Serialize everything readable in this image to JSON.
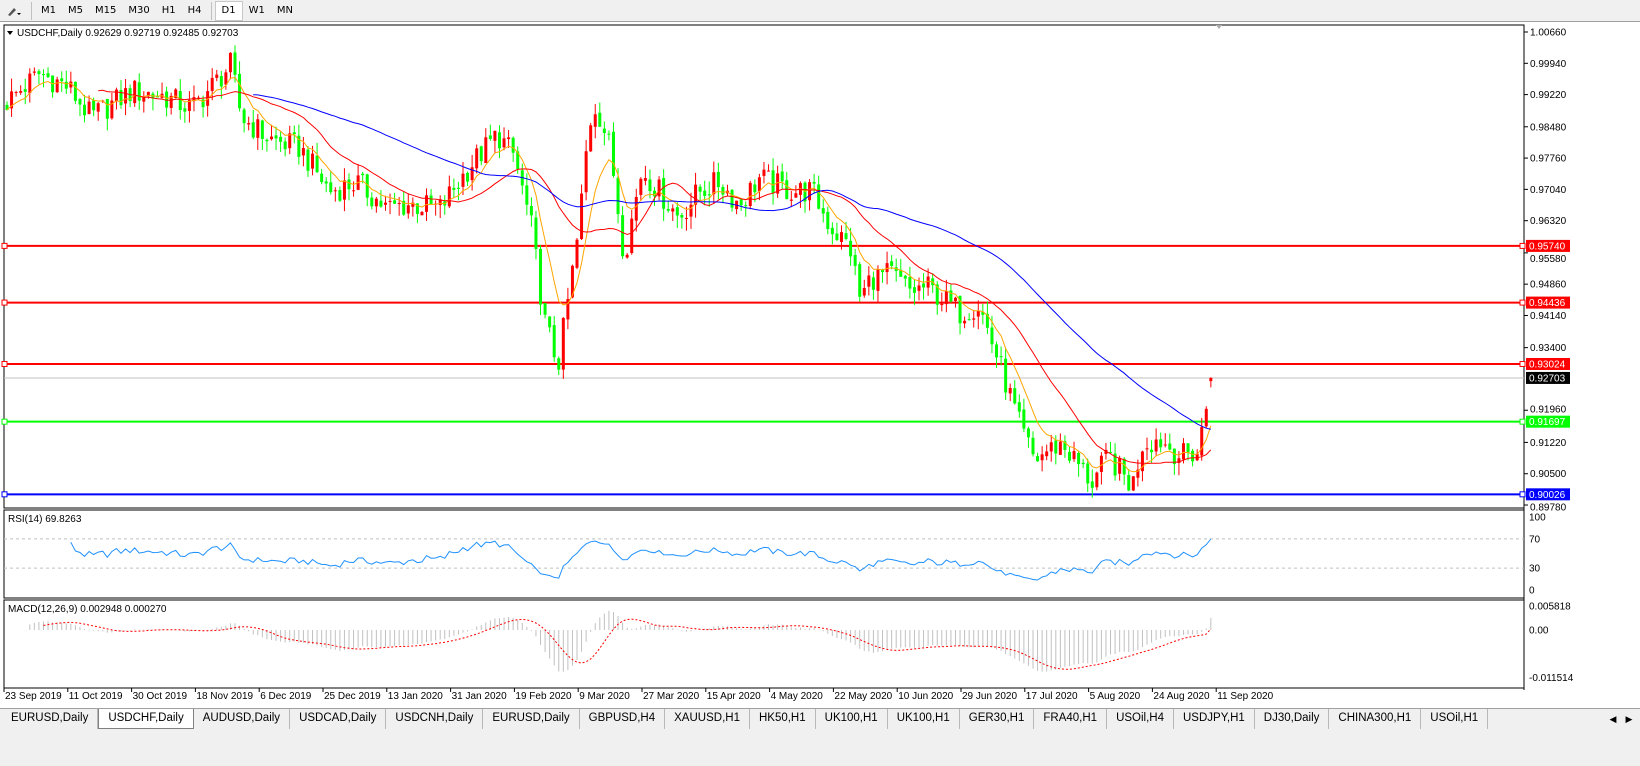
{
  "toolbar": {
    "drawing_tool_icon": "draw-shapes-icon",
    "timeframes": [
      "M1",
      "M5",
      "M15",
      "M30",
      "H1",
      "H4",
      "D1",
      "W1",
      "MN"
    ],
    "active_timeframe": "D1"
  },
  "main": {
    "header": "USDCHF,Daily  0.92629 0.92719 0.92485 0.92703",
    "rsi_label": "RSI(14) 69.8263",
    "macd_label": "MACD(12,26,9) 0.002948 0.000270"
  },
  "tabs": {
    "items": [
      "EURUSD,Daily",
      "USDCHF,Daily",
      "AUDUSD,Daily",
      "USDCAD,Daily",
      "USDCNH,Daily",
      "EURUSD,Daily",
      "GBPUSD,H4",
      "XAUUSD,H1",
      "HK50,H1",
      "UK100,H1",
      "UK100,H1",
      "GER30,H1",
      "FRA40,H1",
      "USOil,H4",
      "USDJPY,H1",
      "DJ30,Daily",
      "CHINA300,H1",
      "USOil,H1"
    ],
    "active_index": 1
  },
  "colors": {
    "bull": "#ff0000",
    "bear": "#00ff00",
    "ma_fast": "#ffa500",
    "ma_mid": "#ff0000",
    "ma_slow": "#0000ff",
    "rsi": "#1e90ff",
    "macd_hist": "#c0c0c0",
    "macd_signal": "#ff0000"
  },
  "chart_data": {
    "type": "candlestick",
    "symbol": "USDCHF",
    "timeframe": "Daily",
    "last_ohlc": {
      "open": 0.92629,
      "high": 0.92719,
      "low": 0.92485,
      "close": 0.92703
    },
    "price_ticks": [
      "1.00660",
      "0.99940",
      "0.99220",
      "0.98480",
      "0.97760",
      "0.97040",
      "0.96320",
      "0.95580",
      "0.94860",
      "0.94140",
      "0.93400",
      "0.91960",
      "0.91220",
      "0.90500",
      "0.89780"
    ],
    "ylim": [
      0.8978,
      1.0066
    ],
    "date_ticks": [
      "23 Sep 2019",
      "11 Oct 2019",
      "30 Oct 2019",
      "18 Nov 2019",
      "6 Dec 2019",
      "25 Dec 2019",
      "13 Jan 2020",
      "31 Jan 2020",
      "19 Feb 2020",
      "9 Mar 2020",
      "27 Mar 2020",
      "15 Apr 2020",
      "4 May 2020",
      "22 May 2020",
      "10 Jun 2020",
      "29 Jun 2020",
      "17 Jul 2020",
      "5 Aug 2020",
      "24 Aug 2020",
      "11 Sep 2020"
    ],
    "horizontal_lines": [
      {
        "price": "0.95740",
        "color": "#ff0000"
      },
      {
        "price": "0.94436",
        "color": "#ff0000"
      },
      {
        "price": "0.93024",
        "color": "#ff0000"
      },
      {
        "price": "0.92703",
        "color": "#000000",
        "current": true
      },
      {
        "price": "0.91697",
        "color": "#00ff00"
      },
      {
        "price": "0.90026",
        "color": "#0000ff"
      }
    ],
    "approx_closes": [
      [
        "2019-09-23",
        0.99
      ],
      [
        "2019-10-03",
        0.997
      ],
      [
        "2019-10-11",
        0.994
      ],
      [
        "2019-10-18",
        0.987
      ],
      [
        "2019-10-30",
        0.993
      ],
      [
        "2019-11-08",
        0.992
      ],
      [
        "2019-11-17",
        0.989
      ],
      [
        "2019-11-28",
        0.999
      ],
      [
        "2019-12-01",
        0.987
      ],
      [
        "2019-12-09",
        0.982
      ],
      [
        "2019-12-18",
        0.98
      ],
      [
        "2019-12-27",
        0.97
      ],
      [
        "2020-01-04",
        0.972
      ],
      [
        "2020-01-13",
        0.966
      ],
      [
        "2020-01-19",
        0.967
      ],
      [
        "2020-01-28",
        0.966
      ],
      [
        "2020-02-06",
        0.976
      ],
      [
        "2020-02-14",
        0.983
      ],
      [
        "2020-02-19",
        0.978
      ],
      [
        "2020-02-24",
        0.962
      ],
      [
        "2020-02-28",
        0.94
      ],
      [
        "2020-03-03",
        0.93
      ],
      [
        "2020-03-05",
        0.94
      ],
      [
        "2020-03-09",
        0.96
      ],
      [
        "2020-03-12",
        0.985
      ],
      [
        "2020-03-14",
        0.99
      ],
      [
        "2020-03-18",
        0.98
      ],
      [
        "2020-03-22",
        0.955
      ],
      [
        "2020-03-27",
        0.975
      ],
      [
        "2020-04-01",
        0.97
      ],
      [
        "2020-04-07",
        0.964
      ],
      [
        "2020-04-13",
        0.97
      ],
      [
        "2020-04-19",
        0.972
      ],
      [
        "2020-04-25",
        0.967
      ],
      [
        "2020-05-01",
        0.973
      ],
      [
        "2020-05-10",
        0.97
      ],
      [
        "2020-05-16",
        0.97
      ],
      [
        "2020-05-21",
        0.962
      ],
      [
        "2020-05-27",
        0.957
      ],
      [
        "2020-05-30",
        0.945
      ],
      [
        "2020-06-02",
        0.95
      ],
      [
        "2020-06-08",
        0.951
      ],
      [
        "2020-06-14",
        0.947
      ],
      [
        "2020-06-19",
        0.948
      ],
      [
        "2020-06-29",
        0.942
      ],
      [
        "2020-07-04",
        0.944
      ],
      [
        "2020-07-10",
        0.93
      ],
      [
        "2020-07-16",
        0.915
      ],
      [
        "2020-07-20",
        0.908
      ],
      [
        "2020-07-23",
        0.91
      ],
      [
        "2020-07-28",
        0.912
      ],
      [
        "2020-08-03",
        0.906
      ],
      [
        "2020-08-06",
        0.903
      ],
      [
        "2020-08-11",
        0.909
      ],
      [
        "2020-08-18",
        0.902
      ],
      [
        "2020-08-21",
        0.912
      ],
      [
        "2020-08-26",
        0.913
      ],
      [
        "2020-09-01",
        0.909
      ],
      [
        "2020-09-06",
        0.91
      ],
      [
        "2020-09-08",
        0.92
      ],
      [
        "2020-09-11",
        0.927
      ]
    ],
    "indicators": {
      "moving_averages": [
        {
          "type": "EMA",
          "period": 8,
          "color": "#ffa500"
        },
        {
          "type": "SMA",
          "period": 21,
          "color": "#ff0000"
        },
        {
          "type": "SMA",
          "period": 55,
          "color": "#0000ff"
        }
      ],
      "rsi": {
        "period": 14,
        "value": 69.8263,
        "levels": [
          "100",
          "70",
          "30",
          "0"
        ]
      },
      "macd": {
        "fast": 12,
        "slow": 26,
        "signal": 9,
        "main": 0.002948,
        "signal_value": 0.00027,
        "ticks": [
          "0.005818",
          "0.00",
          "-0.011514"
        ]
      }
    }
  }
}
